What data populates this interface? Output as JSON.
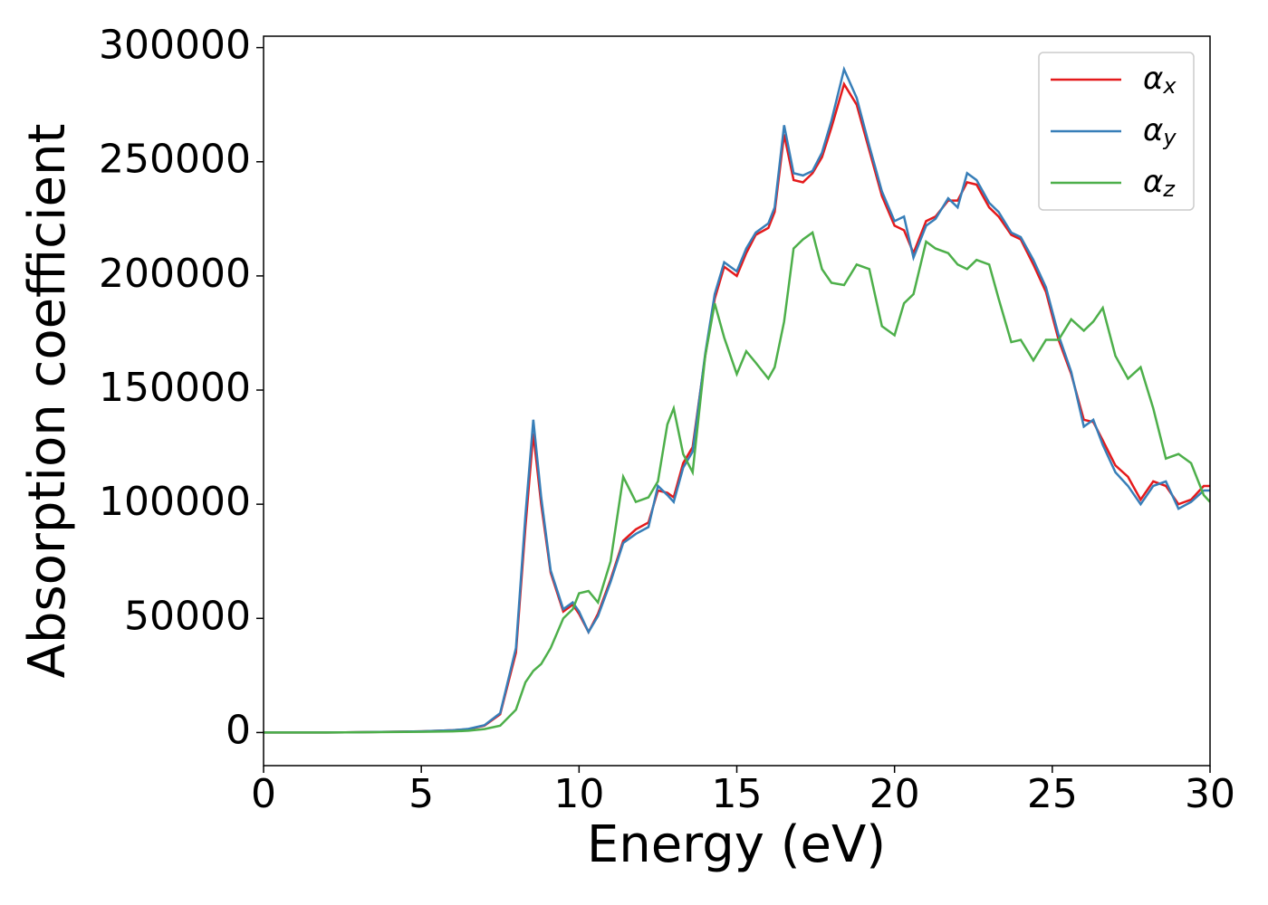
{
  "chart_data": {
    "type": "line",
    "xlabel": "Energy (eV)",
    "ylabel": "Absorption coefficient",
    "x": [
      0,
      2,
      4,
      5,
      6,
      6.5,
      7,
      7.5,
      8,
      8.3,
      8.55,
      8.8,
      9.1,
      9.5,
      9.8,
      10,
      10.3,
      10.6,
      11,
      11.4,
      11.8,
      12.2,
      12.5,
      12.8,
      13,
      13.3,
      13.6,
      14,
      14.3,
      14.6,
      15,
      15.3,
      15.6,
      16,
      16.2,
      16.5,
      16.8,
      17.1,
      17.4,
      17.7,
      18,
      18.4,
      18.8,
      19.2,
      19.6,
      20,
      20.3,
      20.6,
      21,
      21.3,
      21.7,
      22,
      22.3,
      22.6,
      23,
      23.3,
      23.7,
      24,
      24.4,
      24.8,
      25.2,
      25.6,
      26,
      26.3,
      26.6,
      27,
      27.4,
      27.8,
      28.2,
      28.6,
      29,
      29.4,
      29.8,
      30
    ],
    "series": [
      {
        "name": "αx",
        "color": "#e41a1c",
        "values": [
          0,
          0,
          300,
          500,
          1000,
          1500,
          3000,
          8000,
          35000,
          90000,
          131000,
          100000,
          70000,
          53000,
          56000,
          52000,
          44000,
          52000,
          67000,
          84000,
          89000,
          92000,
          106000,
          105000,
          103000,
          118000,
          125000,
          165000,
          190000,
          204000,
          200000,
          210000,
          218000,
          221000,
          228000,
          262000,
          242000,
          241000,
          245000,
          252000,
          265000,
          284000,
          275000,
          255000,
          235000,
          222000,
          220000,
          210000,
          224000,
          226000,
          233000,
          233000,
          241000,
          240000,
          230000,
          226000,
          218000,
          216000,
          205000,
          193000,
          172000,
          157000,
          137000,
          136000,
          128000,
          117000,
          112000,
          102000,
          110000,
          108000,
          100000,
          102000,
          108000,
          108000
        ]
      },
      {
        "name": "αy",
        "color": "#377eb8",
        "values": [
          0,
          0,
          300,
          500,
          1000,
          1600,
          3200,
          8500,
          37000,
          95000,
          137000,
          103000,
          71000,
          54000,
          57000,
          53000,
          44000,
          51000,
          66000,
          83000,
          87000,
          90000,
          108000,
          104000,
          101000,
          116000,
          123000,
          166000,
          192000,
          206000,
          202000,
          212000,
          219000,
          223000,
          230000,
          266000,
          245000,
          244000,
          246000,
          254000,
          268000,
          290500,
          278000,
          257000,
          237000,
          224000,
          226000,
          208000,
          222000,
          225000,
          234000,
          230000,
          245000,
          242000,
          232000,
          228000,
          219000,
          217000,
          207000,
          195000,
          174000,
          158000,
          134000,
          137000,
          126000,
          114000,
          108000,
          100000,
          108000,
          110000,
          98000,
          101000,
          106000,
          106000
        ]
      },
      {
        "name": "αz",
        "color": "#4daf4a",
        "values": [
          0,
          0,
          200,
          300,
          500,
          800,
          1500,
          3000,
          10000,
          22000,
          27000,
          30000,
          37000,
          50000,
          54000,
          61000,
          62000,
          57000,
          75000,
          112000,
          101000,
          103000,
          110000,
          135000,
          142000,
          122000,
          114000,
          165000,
          188000,
          173000,
          157000,
          167000,
          162000,
          155000,
          160000,
          180000,
          212000,
          216000,
          219000,
          203000,
          197000,
          196000,
          205000,
          203000,
          178000,
          174000,
          188000,
          192000,
          215000,
          212000,
          210000,
          205000,
          203000,
          207000,
          205000,
          190000,
          171000,
          172000,
          163000,
          172000,
          172000,
          181000,
          176000,
          180000,
          186000,
          165000,
          155000,
          160000,
          142000,
          120000,
          122000,
          118000,
          104000,
          101000
        ]
      }
    ],
    "xlim": [
      0,
      30
    ],
    "xticks": [
      0,
      5,
      10,
      15,
      20,
      25,
      30
    ],
    "ylim": [
      -14500,
      305000
    ],
    "yticks": [
      0,
      50000,
      100000,
      150000,
      200000,
      250000,
      300000
    ],
    "legend": "upper right"
  }
}
